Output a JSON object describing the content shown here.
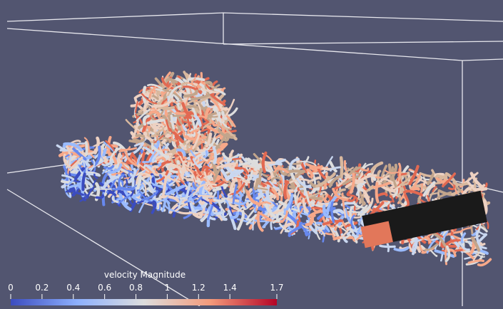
{
  "colorbar": {
    "title": "velocity Magnitude",
    "range": [
      0,
      1.7
    ],
    "ticks": [
      0,
      0.2,
      0.4,
      0.6,
      0.8,
      1,
      1.2,
      1.4,
      1.7
    ]
  }
}
